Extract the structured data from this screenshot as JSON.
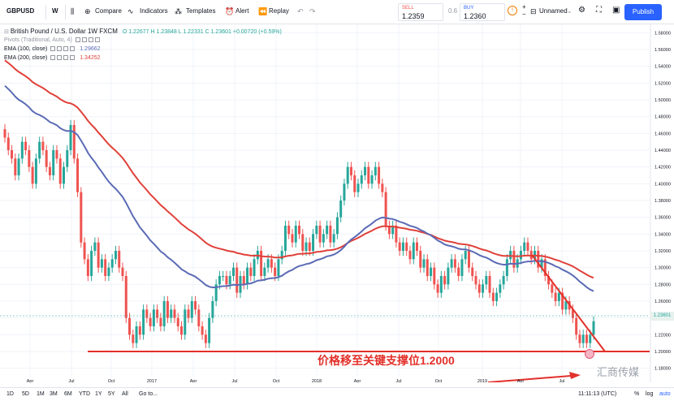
{
  "toolbar": {
    "symbol": "GBPUSD",
    "interval": "W",
    "compare": "Compare",
    "indicators": "Indicators",
    "templates": "Templates",
    "alert": "Alert",
    "replay": "Replay",
    "sell_label": "SELL",
    "sell_price": "1.2359",
    "spread": "0.6",
    "buy_label": "BUY",
    "buy_price": "1.2360",
    "layout_name": "Unnamed",
    "publish": "Publish"
  },
  "legend": {
    "title": "British Pound / U.S. Dollar  1W  FXCM",
    "ohlc": {
      "o": "O 1.22677",
      "h": "H 1.23848",
      "l": "L 1.22331",
      "c": "C 1.23601",
      "chg": "+0.00720 (+0.59%)"
    },
    "pivots": "Pivots (Traditional, Auto, 4)",
    "ema100_label": "EMA (100, close)",
    "ema100_value": "1.29662",
    "ema200_label": "EMA (200, close)",
    "ema200_value": "1.34252"
  },
  "annotation": "价格移至关键支撑位1.2000",
  "watermark": "汇商传媒",
  "colors": {
    "up": "#26a69a",
    "down": "#ef5350",
    "ema100": "#5b6bb5",
    "ema200": "#e0413a",
    "support": "#e3302a"
  },
  "chart_data": {
    "type": "candlestick",
    "title": "British Pound / U.S. Dollar 1W FXCM",
    "y_ticks": [
      "1.58000",
      "1.56000",
      "1.54000",
      "1.52000",
      "1.50000",
      "1.48000",
      "1.46000",
      "1.44000",
      "1.42000",
      "1.40000",
      "1.38000",
      "1.36000",
      "1.34000",
      "1.32000",
      "1.30000",
      "1.28000",
      "1.26000",
      "1.24000",
      "1.22000",
      "1.20000",
      "1.18000"
    ],
    "x_ticks": [
      "Apr",
      "Jul",
      "Oct",
      "2017",
      "Apr",
      "Jul",
      "Oct",
      "2018",
      "Apr",
      "Jul",
      "Oct",
      "2019",
      "Apr",
      "Jul"
    ],
    "ylim": [
      1.17,
      1.59
    ],
    "last_price": "1.23601",
    "support_level": 1.2,
    "closes": [
      1.455,
      1.44,
      1.43,
      1.41,
      1.43,
      1.45,
      1.44,
      1.42,
      1.4,
      1.43,
      1.45,
      1.44,
      1.42,
      1.41,
      1.44,
      1.43,
      1.4,
      1.42,
      1.44,
      1.47,
      1.43,
      1.39,
      1.33,
      1.31,
      1.29,
      1.32,
      1.33,
      1.3,
      1.31,
      1.29,
      1.3,
      1.31,
      1.32,
      1.3,
      1.29,
      1.24,
      1.22,
      1.21,
      1.23,
      1.22,
      1.25,
      1.24,
      1.23,
      1.25,
      1.24,
      1.23,
      1.26,
      1.24,
      1.25,
      1.24,
      1.23,
      1.22,
      1.25,
      1.24,
      1.26,
      1.25,
      1.23,
      1.22,
      1.21,
      1.24,
      1.26,
      1.28,
      1.29,
      1.29,
      1.28,
      1.29,
      1.3,
      1.27,
      1.29,
      1.28,
      1.3,
      1.29,
      1.31,
      1.32,
      1.29,
      1.3,
      1.31,
      1.3,
      1.29,
      1.31,
      1.32,
      1.35,
      1.34,
      1.33,
      1.35,
      1.34,
      1.32,
      1.33,
      1.32,
      1.34,
      1.35,
      1.33,
      1.34,
      1.35,
      1.33,
      1.34,
      1.36,
      1.38,
      1.4,
      1.42,
      1.41,
      1.39,
      1.4,
      1.41,
      1.42,
      1.4,
      1.41,
      1.42,
      1.4,
      1.39,
      1.35,
      1.34,
      1.35,
      1.33,
      1.32,
      1.33,
      1.32,
      1.31,
      1.33,
      1.32,
      1.3,
      1.31,
      1.29,
      1.3,
      1.28,
      1.27,
      1.29,
      1.28,
      1.3,
      1.31,
      1.3,
      1.29,
      1.31,
      1.32,
      1.3,
      1.29,
      1.28,
      1.27,
      1.28,
      1.29,
      1.27,
      1.26,
      1.27,
      1.28,
      1.29,
      1.31,
      1.32,
      1.3,
      1.31,
      1.32,
      1.33,
      1.32,
      1.31,
      1.32,
      1.3,
      1.31,
      1.29,
      1.28,
      1.27,
      1.26,
      1.27,
      1.25,
      1.26,
      1.25,
      1.24,
      1.22,
      1.21,
      1.22,
      1.21,
      1.22,
      1.236
    ]
  }
}
